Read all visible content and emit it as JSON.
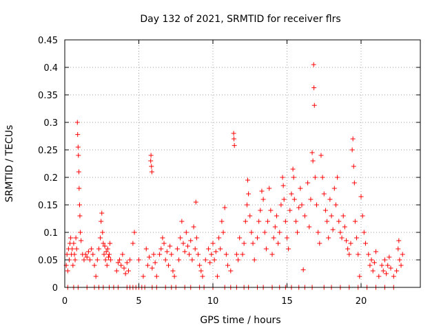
{
  "chart_data": {
    "type": "scatter",
    "title": "Day 132 of 2021, SRMTID for receiver flrs",
    "xlabel": "GPS time / hours",
    "ylabel": "SRMTID / TECUs",
    "xlim": [
      0,
      24
    ],
    "ylim": [
      0,
      0.45
    ],
    "xticks": [
      0,
      5,
      10,
      15,
      20
    ],
    "xtick_labels": [
      "0",
      "5",
      "10",
      "15",
      "20"
    ],
    "yticks": [
      0,
      0.05,
      0.1,
      0.15,
      0.2,
      0.25,
      0.3,
      0.35,
      0.4,
      0.45
    ],
    "ytick_labels": [
      "0",
      "0.05",
      "0.1",
      "0.15",
      "0.2",
      "0.25",
      "0.3",
      "0.35",
      "0.4",
      "0.45"
    ],
    "grid": true,
    "marker": "+",
    "color": "#ff0000",
    "series": [
      {
        "name": "SRMTID",
        "points": [
          [
            0.1,
            0.04
          ],
          [
            0.15,
            0.06
          ],
          [
            0.2,
            0.03
          ],
          [
            0.25,
            0.07
          ],
          [
            0.3,
            0.05
          ],
          [
            0.35,
            0.08
          ],
          [
            0.4,
            0.09
          ],
          [
            0.45,
            0.06
          ],
          [
            0.5,
            0.07
          ],
          [
            0.55,
            0.04
          ],
          [
            0.6,
            0.08
          ],
          [
            0.65,
            0.06
          ],
          [
            0.7,
            0.05
          ],
          [
            0.75,
            0.09
          ],
          [
            0.8,
            0.07
          ],
          [
            0.85,
            0.3
          ],
          [
            0.87,
            0.278
          ],
          [
            0.9,
            0.255
          ],
          [
            0.92,
            0.24
          ],
          [
            0.95,
            0.21
          ],
          [
            0.97,
            0.18
          ],
          [
            1.0,
            0.15
          ],
          [
            1.02,
            0.13
          ],
          [
            1.05,
            0.1
          ],
          [
            1.1,
            0.085
          ],
          [
            1.2,
            0.06
          ],
          [
            1.3,
            0.05
          ],
          [
            1.4,
            0.06
          ],
          [
            1.5,
            0.055
          ],
          [
            1.6,
            0.065
          ],
          [
            1.7,
            0.05
          ],
          [
            1.8,
            0.07
          ],
          [
            1.9,
            0.06
          ],
          [
            2.0,
            0.04
          ],
          [
            2.1,
            0.02
          ],
          [
            2.2,
            0.05
          ],
          [
            2.3,
            0.07
          ],
          [
            2.4,
            0.09
          ],
          [
            2.45,
            0.12
          ],
          [
            2.5,
            0.135
          ],
          [
            2.55,
            0.1
          ],
          [
            2.6,
            0.08
          ],
          [
            2.65,
            0.06
          ],
          [
            2.7,
            0.075
          ],
          [
            2.75,
            0.05
          ],
          [
            2.8,
            0.065
          ],
          [
            2.85,
            0.04
          ],
          [
            2.9,
            0.07
          ],
          [
            2.95,
            0.055
          ],
          [
            3.0,
            0.06
          ],
          [
            3.05,
            0.08
          ],
          [
            3.1,
            0.05
          ],
          [
            3.5,
            0.03
          ],
          [
            3.6,
            0.045
          ],
          [
            3.7,
            0.05
          ],
          [
            3.8,
            0.04
          ],
          [
            3.9,
            0.06
          ],
          [
            4.0,
            0.035
          ],
          [
            4.1,
            0.025
          ],
          [
            4.2,
            0.045
          ],
          [
            4.3,
            0.03
          ],
          [
            4.4,
            0.05
          ],
          [
            4.6,
            0.08
          ],
          [
            4.7,
            0.1
          ],
          [
            5.0,
            0.05
          ],
          [
            5.3,
            0.02
          ],
          [
            5.5,
            0.07
          ],
          [
            5.6,
            0.04
          ],
          [
            5.7,
            0.055
          ],
          [
            5.8,
            0.23
          ],
          [
            5.82,
            0.24
          ],
          [
            5.85,
            0.22
          ],
          [
            5.88,
            0.21
          ],
          [
            5.9,
            0.035
          ],
          [
            6.0,
            0.06
          ],
          [
            6.1,
            0.045
          ],
          [
            6.2,
            0.02
          ],
          [
            6.4,
            0.06
          ],
          [
            6.5,
            0.07
          ],
          [
            6.6,
            0.09
          ],
          [
            6.7,
            0.08
          ],
          [
            6.8,
            0.05
          ],
          [
            6.9,
            0.065
          ],
          [
            7.0,
            0.04
          ],
          [
            7.1,
            0.075
          ],
          [
            7.2,
            0.06
          ],
          [
            7.3,
            0.03
          ],
          [
            7.4,
            0.02
          ],
          [
            7.6,
            0.07
          ],
          [
            7.7,
            0.05
          ],
          [
            7.8,
            0.09
          ],
          [
            7.9,
            0.12
          ],
          [
            8.0,
            0.08
          ],
          [
            8.1,
            0.065
          ],
          [
            8.2,
            0.1
          ],
          [
            8.3,
            0.075
          ],
          [
            8.4,
            0.06
          ],
          [
            8.5,
            0.085
          ],
          [
            8.6,
            0.05
          ],
          [
            8.7,
            0.11
          ],
          [
            8.8,
            0.07
          ],
          [
            8.85,
            0.155
          ],
          [
            8.9,
            0.09
          ],
          [
            9.0,
            0.06
          ],
          [
            9.1,
            0.04
          ],
          [
            9.2,
            0.03
          ],
          [
            9.3,
            0.02
          ],
          [
            9.5,
            0.05
          ],
          [
            9.7,
            0.07
          ],
          [
            9.8,
            0.045
          ],
          [
            9.9,
            0.06
          ],
          [
            10.0,
            0.08
          ],
          [
            10.1,
            0.05
          ],
          [
            10.2,
            0.065
          ],
          [
            10.3,
            0.02
          ],
          [
            10.4,
            0.09
          ],
          [
            10.5,
            0.07
          ],
          [
            10.6,
            0.12
          ],
          [
            10.7,
            0.1
          ],
          [
            10.8,
            0.145
          ],
          [
            10.9,
            0.06
          ],
          [
            11.0,
            0.04
          ],
          [
            11.2,
            0.03
          ],
          [
            11.4,
            0.28
          ],
          [
            11.42,
            0.27
          ],
          [
            11.45,
            0.258
          ],
          [
            11.6,
            0.06
          ],
          [
            11.7,
            0.05
          ],
          [
            11.8,
            0.09
          ],
          [
            12.0,
            0.06
          ],
          [
            12.1,
            0.08
          ],
          [
            12.2,
            0.12
          ],
          [
            12.3,
            0.15
          ],
          [
            12.35,
            0.195
          ],
          [
            12.4,
            0.17
          ],
          [
            12.5,
            0.13
          ],
          [
            12.6,
            0.1
          ],
          [
            12.7,
            0.08
          ],
          [
            12.8,
            0.05
          ],
          [
            13.0,
            0.09
          ],
          [
            13.1,
            0.12
          ],
          [
            13.2,
            0.14
          ],
          [
            13.3,
            0.175
          ],
          [
            13.4,
            0.16
          ],
          [
            13.5,
            0.1
          ],
          [
            13.6,
            0.07
          ],
          [
            13.7,
            0.12
          ],
          [
            13.8,
            0.18
          ],
          [
            13.9,
            0.14
          ],
          [
            14.0,
            0.06
          ],
          [
            14.1,
            0.09
          ],
          [
            14.2,
            0.11
          ],
          [
            14.3,
            0.13
          ],
          [
            14.4,
            0.08
          ],
          [
            14.5,
            0.1
          ],
          [
            14.6,
            0.15
          ],
          [
            14.7,
            0.2
          ],
          [
            14.75,
            0.185
          ],
          [
            14.8,
            0.16
          ],
          [
            14.9,
            0.12
          ],
          [
            15.0,
            0.09
          ],
          [
            15.1,
            0.07
          ],
          [
            15.2,
            0.14
          ],
          [
            15.3,
            0.17
          ],
          [
            15.4,
            0.215
          ],
          [
            15.45,
            0.2
          ],
          [
            15.5,
            0.16
          ],
          [
            15.6,
            0.12
          ],
          [
            15.7,
            0.1
          ],
          [
            15.8,
            0.145
          ],
          [
            15.9,
            0.18
          ],
          [
            16.0,
            0.15
          ],
          [
            16.1,
            0.032
          ],
          [
            16.2,
            0.13
          ],
          [
            16.4,
            0.19
          ],
          [
            16.5,
            0.11
          ],
          [
            16.6,
            0.16
          ],
          [
            16.7,
            0.245
          ],
          [
            16.75,
            0.23
          ],
          [
            16.8,
            0.405
          ],
          [
            16.82,
            0.363
          ],
          [
            16.85,
            0.331
          ],
          [
            16.9,
            0.2
          ],
          [
            17.0,
            0.15
          ],
          [
            17.1,
            0.1
          ],
          [
            17.2,
            0.08
          ],
          [
            17.3,
            0.24
          ],
          [
            17.4,
            0.2
          ],
          [
            17.5,
            0.17
          ],
          [
            17.6,
            0.14
          ],
          [
            17.7,
            0.12
          ],
          [
            17.8,
            0.09
          ],
          [
            17.9,
            0.16
          ],
          [
            18.0,
            0.13
          ],
          [
            18.1,
            0.105
          ],
          [
            18.2,
            0.18
          ],
          [
            18.3,
            0.15
          ],
          [
            18.4,
            0.2
          ],
          [
            18.5,
            0.12
          ],
          [
            18.6,
            0.1
          ],
          [
            18.7,
            0.09
          ],
          [
            18.8,
            0.13
          ],
          [
            18.9,
            0.11
          ],
          [
            19.0,
            0.085
          ],
          [
            19.1,
            0.07
          ],
          [
            19.2,
            0.06
          ],
          [
            19.3,
            0.08
          ],
          [
            19.4,
            0.25
          ],
          [
            19.45,
            0.27
          ],
          [
            19.5,
            0.22
          ],
          [
            19.55,
            0.19
          ],
          [
            19.6,
            0.12
          ],
          [
            19.7,
            0.09
          ],
          [
            19.8,
            0.06
          ],
          [
            19.9,
            0.02
          ],
          [
            20.0,
            0.165
          ],
          [
            20.1,
            0.13
          ],
          [
            20.2,
            0.1
          ],
          [
            20.3,
            0.08
          ],
          [
            20.5,
            0.06
          ],
          [
            20.6,
            0.04
          ],
          [
            20.7,
            0.05
          ],
          [
            20.8,
            0.03
          ],
          [
            20.9,
            0.045
          ],
          [
            21.0,
            0.065
          ],
          [
            21.2,
            0.02
          ],
          [
            21.4,
            0.04
          ],
          [
            21.5,
            0.03
          ],
          [
            21.6,
            0.05
          ],
          [
            21.7,
            0.025
          ],
          [
            21.8,
            0.04
          ],
          [
            21.9,
            0.055
          ],
          [
            22.0,
            0.035
          ],
          [
            22.2,
            0.02
          ],
          [
            22.4,
            0.03
          ],
          [
            22.5,
            0.07
          ],
          [
            22.55,
            0.085
          ],
          [
            22.6,
            0.05
          ],
          [
            22.7,
            0.04
          ],
          [
            22.8,
            0.06
          ],
          [
            0.2,
            0.0
          ],
          [
            0.6,
            0.0
          ],
          [
            0.9,
            0.0
          ],
          [
            1.5,
            0.0
          ],
          [
            2.0,
            0.0
          ],
          [
            2.3,
            0.0
          ],
          [
            2.6,
            0.0
          ],
          [
            3.0,
            0.0
          ],
          [
            3.3,
            0.0
          ],
          [
            3.6,
            0.0
          ],
          [
            4.2,
            0.0
          ],
          [
            4.4,
            0.0
          ],
          [
            4.6,
            0.0
          ],
          [
            4.8,
            0.0
          ],
          [
            5.0,
            0.0
          ],
          [
            5.2,
            0.0
          ],
          [
            5.4,
            0.0
          ],
          [
            5.9,
            0.0
          ],
          [
            6.2,
            0.0
          ],
          [
            6.8,
            0.0
          ],
          [
            7.2,
            0.0
          ],
          [
            7.5,
            0.0
          ],
          [
            8.1,
            0.0
          ],
          [
            8.5,
            0.0
          ],
          [
            9.1,
            0.0
          ],
          [
            9.4,
            0.0
          ],
          [
            10.0,
            0.0
          ],
          [
            10.8,
            0.0
          ],
          [
            11.2,
            0.0
          ],
          [
            11.6,
            0.0
          ],
          [
            12.1,
            0.0
          ],
          [
            12.4,
            0.0
          ],
          [
            13.0,
            0.0
          ],
          [
            13.4,
            0.0
          ],
          [
            14.0,
            0.0
          ],
          [
            14.5,
            0.0
          ],
          [
            14.9,
            0.0
          ],
          [
            15.3,
            0.0
          ],
          [
            15.8,
            0.0
          ],
          [
            16.2,
            0.0
          ],
          [
            16.7,
            0.0
          ],
          [
            17.5,
            0.0
          ],
          [
            18.0,
            0.0
          ],
          [
            18.6,
            0.0
          ],
          [
            19.2,
            0.0
          ],
          [
            19.8,
            0.0
          ],
          [
            20.4,
            0.0
          ],
          [
            21.0,
            0.0
          ],
          [
            21.6,
            0.0
          ],
          [
            22.2,
            0.0
          ]
        ]
      }
    ]
  }
}
